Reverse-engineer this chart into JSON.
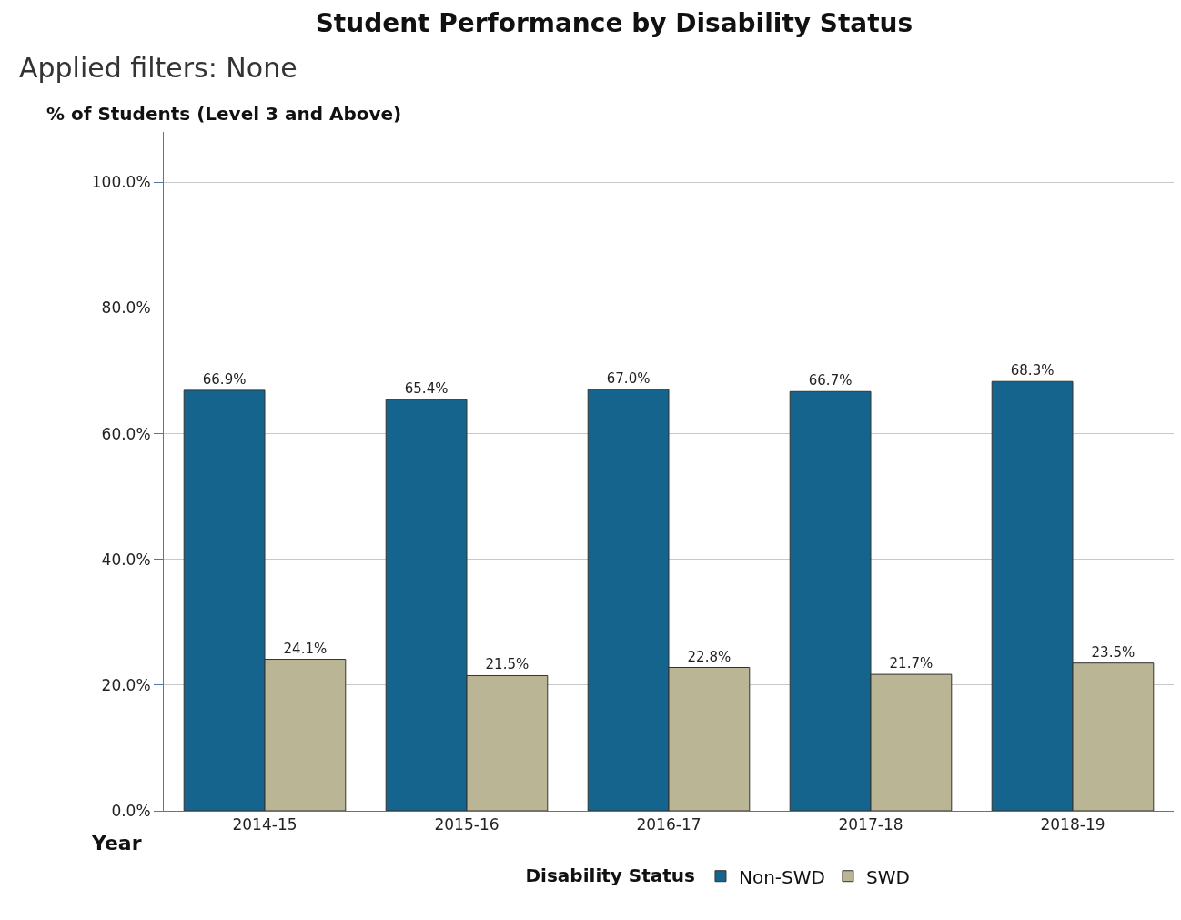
{
  "chart_data": {
    "type": "bar",
    "title": "Student Performance by Disability Status",
    "subtitle": "Applied filters: None",
    "ylabel": "% of Students (Level 3 and Above)",
    "xlabel": "Year",
    "legend_title": "Disability Status",
    "categories": [
      "2014-15",
      "2015-16",
      "2016-17",
      "2017-18",
      "2018-19"
    ],
    "series": [
      {
        "name": "Non-SWD",
        "color": "#14648e",
        "values": [
          66.9,
          65.4,
          67.0,
          66.7,
          68.3
        ],
        "value_labels": [
          "66.9%",
          "65.4%",
          "67.0%",
          "66.7%",
          "68.3%"
        ]
      },
      {
        "name": "SWD",
        "color": "#bab594",
        "values": [
          24.1,
          21.5,
          22.8,
          21.7,
          23.5
        ],
        "value_labels": [
          "24.1%",
          "21.5%",
          "22.8%",
          "21.7%",
          "23.5%"
        ]
      }
    ],
    "ylim": [
      0,
      108
    ],
    "yticks": [
      {
        "value": 0,
        "label": "0.0%"
      },
      {
        "value": 20,
        "label": "20.0%"
      },
      {
        "value": 40,
        "label": "40.0%"
      },
      {
        "value": 60,
        "label": "60.0%"
      },
      {
        "value": 80,
        "label": "80.0%"
      },
      {
        "value": 100,
        "label": "100.0%"
      }
    ],
    "grid": "y",
    "legend": "bottom"
  }
}
